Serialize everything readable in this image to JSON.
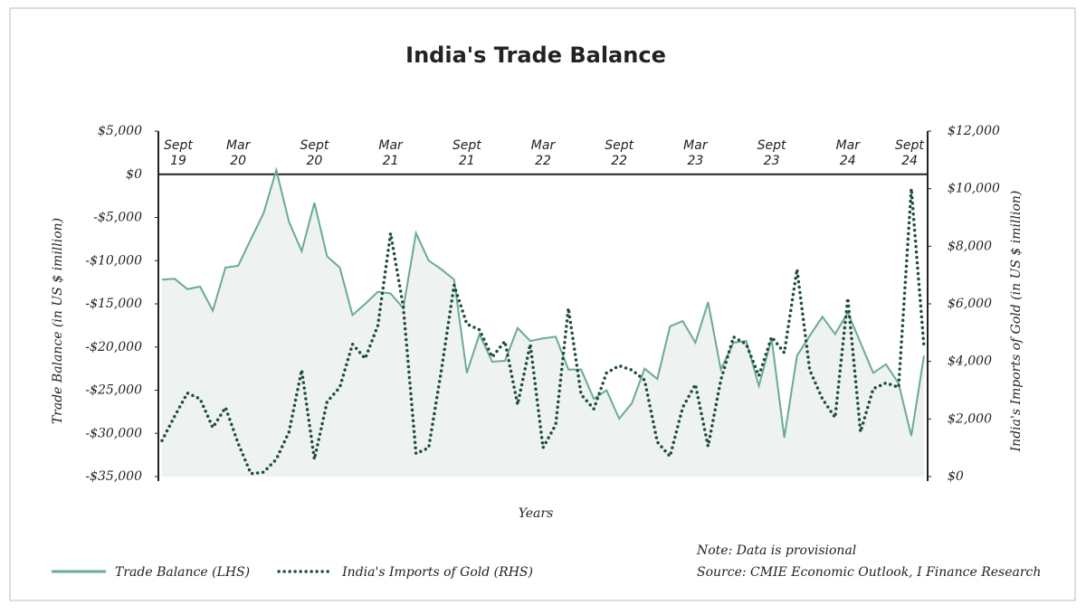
{
  "chart_data": {
    "type": "line",
    "title": "India's Trade Balance",
    "x_label": "Years",
    "y_label": "Trade Balance (in US $ imillion)",
    "y2_label": "India's Imports of Gold (in US $ imillion)",
    "categories": [
      "Sept 19",
      null,
      null,
      null,
      null,
      null,
      "Mar 20",
      null,
      null,
      null,
      null,
      null,
      "Sept 20",
      null,
      null,
      null,
      null,
      null,
      "Mar 21",
      null,
      null,
      null,
      null,
      null,
      "Sept 21",
      null,
      null,
      null,
      null,
      null,
      "Mar 22",
      null,
      null,
      null,
      null,
      null,
      "Sept 22",
      null,
      null,
      null,
      null,
      null,
      "Mar 23",
      null,
      null,
      null,
      null,
      null,
      "Sept 23",
      null,
      null,
      null,
      null,
      null,
      "Mar 24",
      null,
      null,
      null,
      null,
      null,
      "Sept 24"
    ],
    "series": [
      {
        "name": "Trade Balance (LHS)",
        "color": "#6aaa96",
        "axis": "y",
        "values": [
          -12200,
          -12100,
          -13300,
          -13000,
          -15800,
          -10800,
          -10600,
          -7500,
          -4500,
          500,
          -5500,
          -8900,
          -3300,
          -9500,
          -10800,
          -16300,
          -15000,
          -13600,
          -13800,
          -15500,
          -6800,
          -10000,
          -11000,
          -12200,
          -23000,
          -18500,
          -21700,
          -21600,
          -17800,
          -19300,
          -19000,
          -18800,
          -22600,
          -22600,
          -26000,
          -25000,
          -28300,
          -26500,
          -22500,
          -23700,
          -17600,
          -17000,
          -19500,
          -14800,
          -22600,
          -19500,
          -19300,
          -24500,
          -19000,
          -30500,
          -21000,
          -18700,
          -16500,
          -18500,
          -16000,
          -19500,
          -23000,
          -22000,
          -24200,
          -30300,
          -21000
        ]
      },
      {
        "name": "India's Imports of Gold (RHS)",
        "color": "#1f4d3b",
        "axis": "y2",
        "values": [
          1250,
          2100,
          2900,
          2700,
          1700,
          2400,
          1150,
          100,
          150,
          600,
          1550,
          3700,
          600,
          2600,
          3100,
          4600,
          4100,
          5250,
          8450,
          5900,
          800,
          1000,
          3700,
          6650,
          5300,
          5100,
          4150,
          4700,
          2500,
          4600,
          1000,
          1800,
          5850,
          2850,
          2350,
          3600,
          3850,
          3700,
          3350,
          1200,
          700,
          2400,
          3200,
          1050,
          3350,
          4850,
          4600,
          3500,
          4850,
          4300,
          7200,
          3700,
          2700,
          2050,
          6200,
          1550,
          3050,
          3250,
          3100,
          10000,
          4500
        ]
      }
    ],
    "ylim": [
      -35000,
      5000
    ],
    "yticks": [
      {
        "value": 5000,
        "label": "$5,000"
      },
      {
        "value": 0,
        "label": "$0"
      },
      {
        "value": -5000,
        "label": "-$5,000"
      },
      {
        "value": -10000,
        "label": "-$10,000"
      },
      {
        "value": -15000,
        "label": "-$15,000"
      },
      {
        "value": -20000,
        "label": "-$20,000"
      },
      {
        "value": -25000,
        "label": "-$25,000"
      },
      {
        "value": -30000,
        "label": "-$30,000"
      },
      {
        "value": -35000,
        "label": "-$35,000"
      }
    ],
    "y2lim": [
      0,
      12000
    ],
    "y2ticks": [
      {
        "value": 0,
        "label": "$0"
      },
      {
        "value": 2000,
        "label": "$2,000"
      },
      {
        "value": 4000,
        "label": "$4,000"
      },
      {
        "value": 6000,
        "label": "$6,000"
      },
      {
        "value": 8000,
        "label": "$8,000"
      },
      {
        "value": 10000,
        "label": "$10,000"
      },
      {
        "value": 12000,
        "label": "$12,000"
      }
    ],
    "area_fill": "#eef2f0",
    "notes": [
      "Note: Data is provisional",
      "Source: CMIE Economic Outlook, I Finance Research"
    ]
  }
}
